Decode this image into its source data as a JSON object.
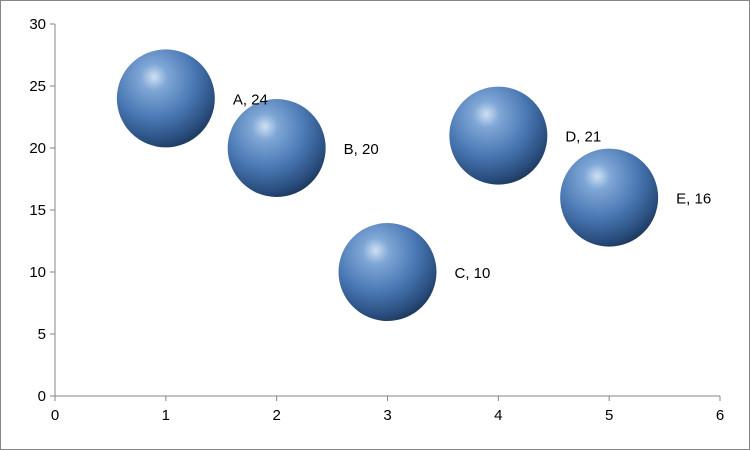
{
  "chart_data": {
    "type": "bubble",
    "title": "",
    "xlabel": "",
    "ylabel": "",
    "xlim": [
      0,
      6
    ],
    "ylim": [
      0,
      30
    ],
    "x_ticks": [
      0,
      1,
      2,
      3,
      4,
      5,
      6
    ],
    "y_ticks": [
      0,
      5,
      10,
      15,
      20,
      25,
      30
    ],
    "grid": false,
    "legend": "none",
    "bubble_color": "#4f81bd",
    "points": [
      {
        "name": "A",
        "x": 1,
        "y": 24,
        "label": "A, 24"
      },
      {
        "name": "B",
        "x": 2,
        "y": 20,
        "label": "B, 20"
      },
      {
        "name": "C",
        "x": 3,
        "y": 10,
        "label": "C, 10"
      },
      {
        "name": "D",
        "x": 4,
        "y": 21,
        "label": "D, 21"
      },
      {
        "name": "E",
        "x": 5,
        "y": 16,
        "label": "E, 16"
      }
    ]
  }
}
